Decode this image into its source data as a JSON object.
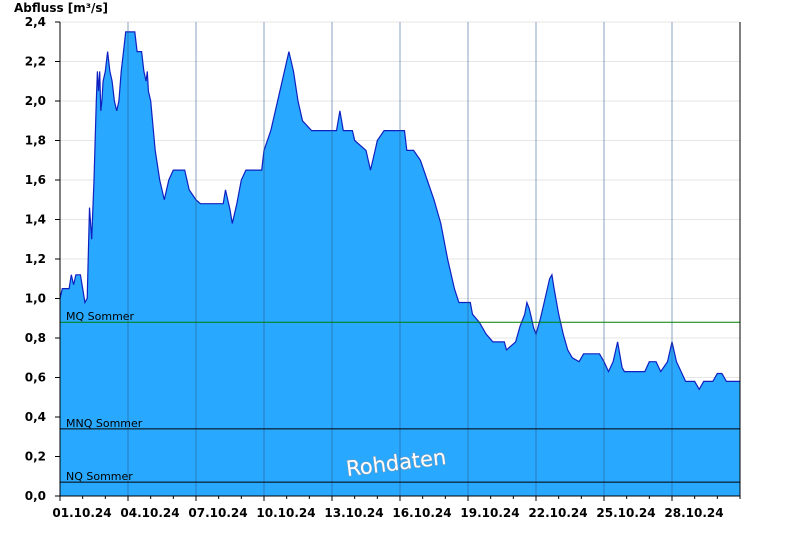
{
  "chart_data": {
    "type": "area",
    "ylabel": "Abfluss [m³/s]",
    "ylim": [
      0,
      2.4
    ],
    "yticks": [
      0.0,
      0.2,
      0.4,
      0.6,
      0.8,
      1.0,
      1.2,
      1.4,
      1.6,
      1.8,
      2.0,
      2.2,
      2.4
    ],
    "ytick_labels": [
      "0,0",
      "0,2",
      "0,4",
      "0,6",
      "0,8",
      "1,0",
      "1,2",
      "1,4",
      "1,6",
      "1,8",
      "2,0",
      "2,2",
      "2,4"
    ],
    "xlim": [
      0,
      30
    ],
    "xticks": [
      0,
      3,
      6,
      9,
      12,
      15,
      18,
      21,
      24,
      27
    ],
    "xtick_labels": [
      "01.10.24",
      "04.10.24",
      "07.10.24",
      "10.10.24",
      "13.10.24",
      "16.10.24",
      "19.10.24",
      "22.10.24",
      "25.10.24",
      "28.10.24"
    ],
    "grid": true,
    "series": [
      {
        "color": "#29a8ff",
        "line_color": "#1020c0",
        "points": [
          [
            0.0,
            1.0
          ],
          [
            0.1,
            1.05
          ],
          [
            0.4,
            1.05
          ],
          [
            0.5,
            1.12
          ],
          [
            0.6,
            1.07
          ],
          [
            0.7,
            1.12
          ],
          [
            0.9,
            1.12
          ],
          [
            1.0,
            1.05
          ],
          [
            1.1,
            0.98
          ],
          [
            1.2,
            1.0
          ],
          [
            1.3,
            1.46
          ],
          [
            1.4,
            1.3
          ],
          [
            1.5,
            1.6
          ],
          [
            1.6,
            2.0
          ],
          [
            1.65,
            2.15
          ],
          [
            1.7,
            2.05
          ],
          [
            1.75,
            2.15
          ],
          [
            1.8,
            1.95
          ],
          [
            1.85,
            2.0
          ],
          [
            1.9,
            2.1
          ],
          [
            2.0,
            2.15
          ],
          [
            2.1,
            2.25
          ],
          [
            2.2,
            2.15
          ],
          [
            2.3,
            2.1
          ],
          [
            2.4,
            2.0
          ],
          [
            2.5,
            1.95
          ],
          [
            2.6,
            2.0
          ],
          [
            2.7,
            2.15
          ],
          [
            2.8,
            2.25
          ],
          [
            2.9,
            2.35
          ],
          [
            3.3,
            2.35
          ],
          [
            3.4,
            2.25
          ],
          [
            3.6,
            2.25
          ],
          [
            3.7,
            2.15
          ],
          [
            3.8,
            2.1
          ],
          [
            3.85,
            2.15
          ],
          [
            3.9,
            2.05
          ],
          [
            4.0,
            2.0
          ],
          [
            4.2,
            1.75
          ],
          [
            4.4,
            1.6
          ],
          [
            4.6,
            1.5
          ],
          [
            4.8,
            1.6
          ],
          [
            5.0,
            1.65
          ],
          [
            5.5,
            1.65
          ],
          [
            5.7,
            1.55
          ],
          [
            6.0,
            1.5
          ],
          [
            6.2,
            1.48
          ],
          [
            7.2,
            1.48
          ],
          [
            7.3,
            1.55
          ],
          [
            7.5,
            1.45
          ],
          [
            7.6,
            1.38
          ],
          [
            7.8,
            1.48
          ],
          [
            8.0,
            1.6
          ],
          [
            8.2,
            1.65
          ],
          [
            8.9,
            1.65
          ],
          [
            9.0,
            1.75
          ],
          [
            9.3,
            1.85
          ],
          [
            9.6,
            2.0
          ],
          [
            9.9,
            2.15
          ],
          [
            10.1,
            2.25
          ],
          [
            10.3,
            2.15
          ],
          [
            10.5,
            2.0
          ],
          [
            10.7,
            1.9
          ],
          [
            11.1,
            1.85
          ],
          [
            12.2,
            1.85
          ],
          [
            12.35,
            1.95
          ],
          [
            12.5,
            1.85
          ],
          [
            12.9,
            1.85
          ],
          [
            13.0,
            1.8
          ],
          [
            13.5,
            1.75
          ],
          [
            13.7,
            1.65
          ],
          [
            13.9,
            1.75
          ],
          [
            14.0,
            1.8
          ],
          [
            14.3,
            1.85
          ],
          [
            14.5,
            1.85
          ],
          [
            15.2,
            1.85
          ],
          [
            15.3,
            1.75
          ],
          [
            15.6,
            1.75
          ],
          [
            15.9,
            1.7
          ],
          [
            16.2,
            1.6
          ],
          [
            16.5,
            1.5
          ],
          [
            16.8,
            1.38
          ],
          [
            17.1,
            1.2
          ],
          [
            17.4,
            1.05
          ],
          [
            17.6,
            0.98
          ],
          [
            18.1,
            0.98
          ],
          [
            18.2,
            0.92
          ],
          [
            18.5,
            0.88
          ],
          [
            18.8,
            0.82
          ],
          [
            19.1,
            0.78
          ],
          [
            19.6,
            0.78
          ],
          [
            19.7,
            0.74
          ],
          [
            20.1,
            0.78
          ],
          [
            20.3,
            0.86
          ],
          [
            20.5,
            0.92
          ],
          [
            20.6,
            0.98
          ],
          [
            20.7,
            0.95
          ],
          [
            20.8,
            0.9
          ],
          [
            20.9,
            0.85
          ],
          [
            21.0,
            0.82
          ],
          [
            21.2,
            0.9
          ],
          [
            21.3,
            0.95
          ],
          [
            21.6,
            1.1
          ],
          [
            21.7,
            1.12
          ],
          [
            21.8,
            1.05
          ],
          [
            22.0,
            0.92
          ],
          [
            22.2,
            0.82
          ],
          [
            22.4,
            0.74
          ],
          [
            22.6,
            0.7
          ],
          [
            22.9,
            0.68
          ],
          [
            23.1,
            0.72
          ],
          [
            23.3,
            0.72
          ],
          [
            23.8,
            0.72
          ],
          [
            24.0,
            0.68
          ],
          [
            24.2,
            0.63
          ],
          [
            24.4,
            0.68
          ],
          [
            24.6,
            0.78
          ],
          [
            24.8,
            0.65
          ],
          [
            24.9,
            0.63
          ],
          [
            25.8,
            0.63
          ],
          [
            26.0,
            0.68
          ],
          [
            26.3,
            0.68
          ],
          [
            26.5,
            0.63
          ],
          [
            26.8,
            0.68
          ],
          [
            27.0,
            0.78
          ],
          [
            27.2,
            0.68
          ],
          [
            27.4,
            0.63
          ],
          [
            27.6,
            0.58
          ],
          [
            28.0,
            0.58
          ],
          [
            28.2,
            0.54
          ],
          [
            28.4,
            0.58
          ],
          [
            28.8,
            0.58
          ],
          [
            29.0,
            0.62
          ],
          [
            29.2,
            0.62
          ],
          [
            29.4,
            0.58
          ],
          [
            30.0,
            0.58
          ]
        ]
      }
    ],
    "reference_lines": [
      {
        "label": "MQ Sommer",
        "value": 0.88,
        "color": "#008000"
      },
      {
        "label": "MNQ Sommer",
        "value": 0.34,
        "color": "#000000"
      },
      {
        "label": "NQ Sommer",
        "value": 0.07,
        "color": "#000000"
      }
    ],
    "watermark": "Rohdaten"
  }
}
